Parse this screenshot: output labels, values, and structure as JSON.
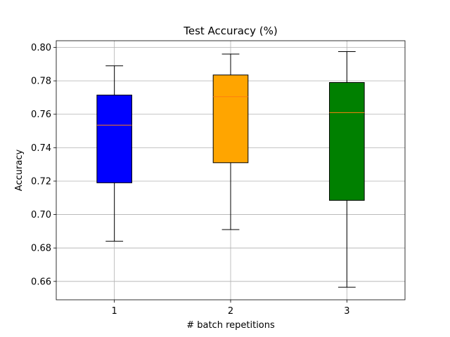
{
  "chart_data": {
    "type": "box",
    "title": "Test Accuracy (%)",
    "xlabel": "# batch repetitions",
    "ylabel": "Accuracy",
    "categories": [
      "1",
      "2",
      "3"
    ],
    "boxes": [
      {
        "category": "1",
        "whislo": 0.684,
        "q1": 0.719,
        "med": 0.7535,
        "q3": 0.7715,
        "whishi": 0.789,
        "color": "#0000ff"
      },
      {
        "category": "2",
        "whislo": 0.691,
        "q1": 0.731,
        "med": 0.7705,
        "q3": 0.7835,
        "whishi": 0.796,
        "color": "#ffa500"
      },
      {
        "category": "3",
        "whislo": 0.6565,
        "q1": 0.7085,
        "med": 0.761,
        "q3": 0.779,
        "whishi": 0.7975,
        "color": "#008000"
      }
    ],
    "median_color": "#ff7f0e",
    "ylim": [
      0.649,
      0.804
    ],
    "yticks": [
      0.66,
      0.68,
      0.7,
      0.72,
      0.74,
      0.76,
      0.78,
      0.8
    ],
    "ytick_labels": [
      "0.66",
      "0.68",
      "0.70",
      "0.72",
      "0.74",
      "0.76",
      "0.78",
      "0.80"
    ],
    "grid": true
  }
}
